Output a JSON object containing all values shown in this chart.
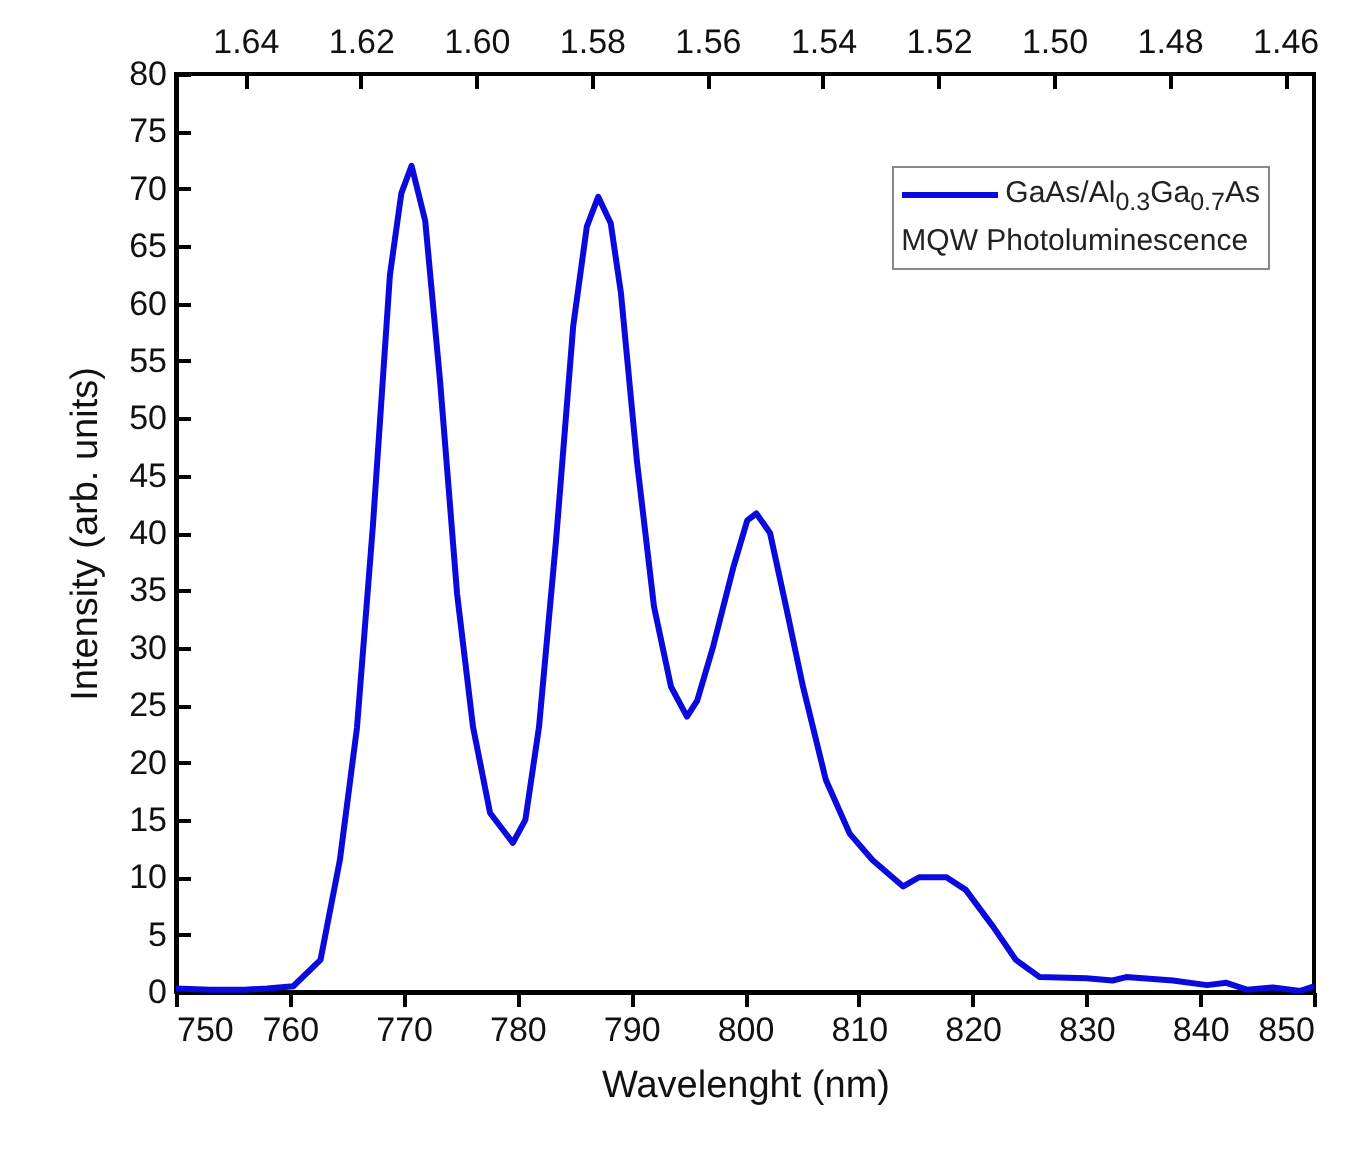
{
  "chart_data": {
    "type": "line",
    "xlabel": "Wavelenght (nm)",
    "ylabel": "Intensity (arb. units)",
    "xlim": [
      750,
      850
    ],
    "xticks": [
      750,
      760,
      770,
      780,
      790,
      800,
      810,
      820,
      830,
      840,
      850
    ],
    "ylim": [
      0,
      80
    ],
    "yticks": [
      0,
      5,
      10,
      15,
      20,
      25,
      30,
      35,
      40,
      45,
      50,
      55,
      60,
      65,
      70,
      75,
      80
    ],
    "x2lim": [
      1.652,
      1.455
    ],
    "x2ticks": [
      {
        "value": 1.64,
        "label": "1.64"
      },
      {
        "value": 1.62,
        "label": "1.62"
      },
      {
        "value": 1.6,
        "label": "1.60"
      },
      {
        "value": 1.58,
        "label": "1.58"
      },
      {
        "value": 1.56,
        "label": "1.56"
      },
      {
        "value": 1.54,
        "label": "1.54"
      },
      {
        "value": 1.52,
        "label": "1.52"
      },
      {
        "value": 1.5,
        "label": "1.50"
      },
      {
        "value": 1.48,
        "label": "1.48"
      },
      {
        "value": 1.46,
        "label": "1.46"
      }
    ],
    "grid": false,
    "legend": "top right",
    "marker": "none",
    "line_style": "solid",
    "series": [
      {
        "name": "GaAs/Al$_{0.3}$Ga$_{0.7}$As\nMQW Photoluminescence",
        "color": "#0a0adc",
        "x": [
          750,
          753,
          756,
          758,
          760.3,
          762.7,
          764.4,
          765.9,
          767.3,
          768.8,
          769.8,
          770.7,
          771.9,
          773.2,
          774.7,
          776.1,
          777.6,
          779.6,
          780.7,
          781.9,
          783.4,
          784.9,
          786.1,
          787.1,
          788.2,
          789.1,
          790.5,
          792,
          793.5,
          794.9,
          795.8,
          797.2,
          799,
          800.2,
          801,
          802.2,
          803.6,
          805.1,
          807.1,
          809.2,
          811.2,
          813.9,
          815.3,
          817.7,
          819.4,
          821.8,
          823.8,
          825.9,
          830,
          832.3,
          833.5,
          837.6,
          840.6,
          842.3,
          844.1,
          846.4,
          848.8,
          850
        ],
        "values": [
          0.3,
          0.2,
          0.2,
          0.3,
          0.5,
          2.8,
          11.5,
          23,
          40.6,
          62.5,
          69.6,
          72,
          67.2,
          53.3,
          34.7,
          23.1,
          15.6,
          13,
          15,
          23.1,
          39.4,
          58,
          66.7,
          69.3,
          67,
          60.9,
          46.3,
          33.6,
          26.6,
          24,
          25.4,
          30.1,
          37.1,
          41.1,
          41.7,
          40,
          33.6,
          26.6,
          18.5,
          13.8,
          11.5,
          9.2,
          10,
          10,
          8.9,
          5.7,
          2.8,
          1.3,
          1.2,
          1,
          1.3,
          1,
          0.6,
          0.8,
          0.2,
          0.4,
          0.1,
          0.5
        ]
      }
    ]
  }
}
